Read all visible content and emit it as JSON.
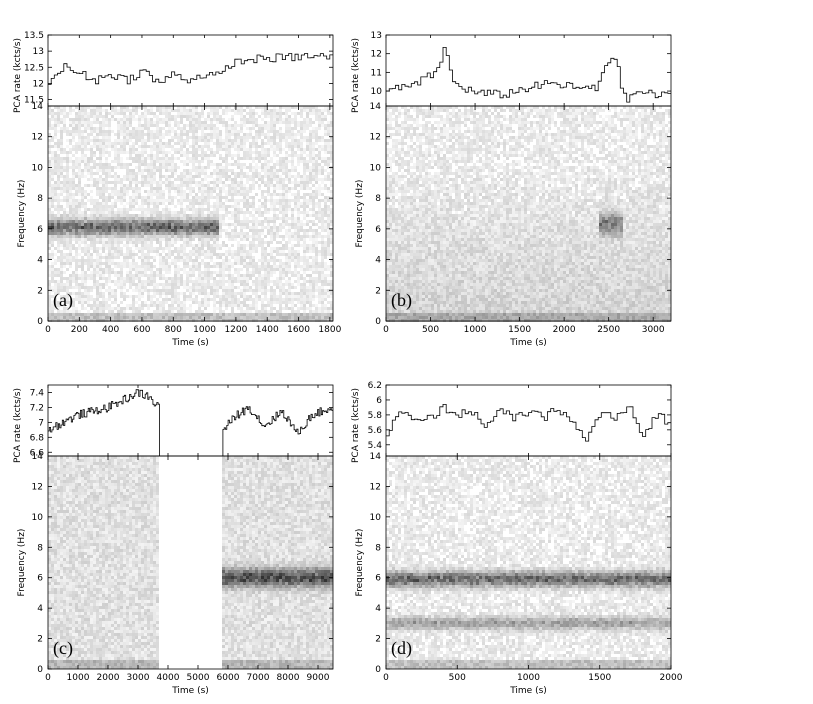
{
  "chart_data": [
    {
      "type": "heatmap",
      "panel_label": "(a)",
      "xlabel": "Time (s)",
      "xlim": [
        0,
        1820
      ],
      "xticks": [
        0,
        200,
        400,
        600,
        800,
        1000,
        1200,
        1400,
        1600,
        1800
      ],
      "rate_panel": {
        "ylabel": "PCA rate (kcts/s)",
        "ylim": [
          11.3,
          13.5
        ],
        "yticks": [
          11.5,
          12,
          12.5,
          13,
          13.5
        ],
        "gaps": [],
        "series": [
          {
            "t": 0,
            "v": 12.1
          },
          {
            "t": 100,
            "v": 12.5
          },
          {
            "t": 200,
            "v": 12.3
          },
          {
            "t": 300,
            "v": 12.1
          },
          {
            "t": 400,
            "v": 12.3
          },
          {
            "t": 500,
            "v": 12.1
          },
          {
            "t": 600,
            "v": 12.4
          },
          {
            "t": 700,
            "v": 12.0
          },
          {
            "t": 800,
            "v": 12.3
          },
          {
            "t": 900,
            "v": 12.1
          },
          {
            "t": 1000,
            "v": 12.3
          },
          {
            "t": 1100,
            "v": 12.2
          },
          {
            "t": 1150,
            "v": 12.6
          },
          {
            "t": 1300,
            "v": 12.75
          },
          {
            "t": 1500,
            "v": 12.8
          },
          {
            "t": 1700,
            "v": 12.85
          },
          {
            "t": 1820,
            "v": 12.8
          }
        ]
      },
      "spectrogram": {
        "ylabel": "Frequency (Hz)",
        "ylim": [
          0,
          14
        ],
        "yticks": [
          0,
          2,
          4,
          6,
          8,
          10,
          12,
          14
        ],
        "gaps": [],
        "qpo_bands": [
          {
            "t_start": 0,
            "t_end": 1100,
            "freq": 6.1,
            "width": 0.5,
            "strength": 0.8
          }
        ]
      }
    },
    {
      "type": "heatmap",
      "panel_label": "(b)",
      "xlabel": "Time (s)",
      "xlim": [
        0,
        3200
      ],
      "xticks": [
        0,
        500,
        1000,
        1500,
        2000,
        2500,
        3000
      ],
      "rate_panel": {
        "ylabel": "PCA rate (kcts/s)",
        "ylim": [
          9.2,
          13
        ],
        "yticks": [
          10,
          11,
          12,
          13
        ],
        "gaps": [],
        "series": [
          {
            "t": 0,
            "v": 10.0
          },
          {
            "t": 300,
            "v": 10.3
          },
          {
            "t": 550,
            "v": 11.0
          },
          {
            "t": 650,
            "v": 12.3
          },
          {
            "t": 750,
            "v": 10.4
          },
          {
            "t": 1000,
            "v": 9.9
          },
          {
            "t": 1300,
            "v": 9.8
          },
          {
            "t": 1600,
            "v": 10.2
          },
          {
            "t": 1850,
            "v": 10.4
          },
          {
            "t": 2100,
            "v": 10.2
          },
          {
            "t": 2350,
            "v": 10.1
          },
          {
            "t": 2450,
            "v": 11.4
          },
          {
            "t": 2550,
            "v": 12.0
          },
          {
            "t": 2680,
            "v": 9.4
          },
          {
            "t": 2800,
            "v": 10.0
          },
          {
            "t": 3000,
            "v": 9.8
          },
          {
            "t": 3200,
            "v": 9.7
          }
        ]
      },
      "spectrogram": {
        "ylabel": "Frequency (Hz)",
        "ylim": [
          0,
          14
        ],
        "yticks": [
          0,
          2,
          4,
          6,
          8,
          10,
          12,
          14
        ],
        "gaps": [],
        "qpo_bands": [
          {
            "t_start": 2400,
            "t_end": 2650,
            "freq": 6.3,
            "width": 0.7,
            "strength": 0.6
          }
        ]
      }
    },
    {
      "type": "heatmap",
      "panel_label": "(c)",
      "xlabel": "Time (s)",
      "xlim": [
        0,
        9500
      ],
      "xticks": [
        0,
        1000,
        2000,
        3000,
        4000,
        5000,
        6000,
        7000,
        8000,
        9000
      ],
      "rate_panel": {
        "ylabel": "PCA rate (kcts/s)",
        "ylim": [
          6.55,
          7.5
        ],
        "yticks": [
          6.6,
          6.8,
          7,
          7.2,
          7.4
        ],
        "gaps": [
          [
            3700,
            5800
          ]
        ],
        "series": [
          {
            "t": 0,
            "v": 6.9
          },
          {
            "t": 500,
            "v": 7.0
          },
          {
            "t": 1000,
            "v": 7.1
          },
          {
            "t": 1500,
            "v": 7.15
          },
          {
            "t": 2000,
            "v": 7.2
          },
          {
            "t": 2500,
            "v": 7.3
          },
          {
            "t": 3000,
            "v": 7.4
          },
          {
            "t": 3300,
            "v": 7.35
          },
          {
            "t": 3700,
            "v": 7.2
          },
          {
            "t": 5800,
            "v": 6.9
          },
          {
            "t": 6300,
            "v": 7.1
          },
          {
            "t": 6700,
            "v": 7.2
          },
          {
            "t": 7200,
            "v": 6.95
          },
          {
            "t": 7800,
            "v": 7.15
          },
          {
            "t": 8300,
            "v": 6.85
          },
          {
            "t": 8800,
            "v": 7.1
          },
          {
            "t": 9500,
            "v": 7.2
          }
        ]
      },
      "spectrogram": {
        "ylabel": "Frequency (Hz)",
        "ylim": [
          0,
          14
        ],
        "yticks": [
          0,
          2,
          4,
          6,
          8,
          10,
          12,
          14
        ],
        "gaps": [
          [
            3700,
            5800
          ]
        ],
        "qpo_bands": [
          {
            "t_start": 5800,
            "t_end": 9500,
            "freq": 6.0,
            "width": 0.6,
            "strength": 0.85
          }
        ]
      }
    },
    {
      "type": "heatmap",
      "panel_label": "(d)",
      "xlabel": "Time (s)",
      "xlim": [
        0,
        2000
      ],
      "xticks": [
        0,
        500,
        1000,
        1500,
        2000
      ],
      "rate_panel": {
        "ylabel": "PCA rate (kcts/s)",
        "ylim": [
          5.25,
          6.2
        ],
        "yticks": [
          5.4,
          5.6,
          5.8,
          6,
          6.2
        ],
        "gaps": [],
        "series": [
          {
            "t": 0,
            "v": 5.55
          },
          {
            "t": 100,
            "v": 5.85
          },
          {
            "t": 200,
            "v": 5.7
          },
          {
            "t": 300,
            "v": 5.75
          },
          {
            "t": 400,
            "v": 5.9
          },
          {
            "t": 500,
            "v": 5.8
          },
          {
            "t": 600,
            "v": 5.85
          },
          {
            "t": 700,
            "v": 5.65
          },
          {
            "t": 800,
            "v": 5.85
          },
          {
            "t": 900,
            "v": 5.75
          },
          {
            "t": 1000,
            "v": 5.85
          },
          {
            "t": 1100,
            "v": 5.75
          },
          {
            "t": 1200,
            "v": 5.9
          },
          {
            "t": 1300,
            "v": 5.7
          },
          {
            "t": 1400,
            "v": 5.45
          },
          {
            "t": 1500,
            "v": 5.85
          },
          {
            "t": 1600,
            "v": 5.75
          },
          {
            "t": 1700,
            "v": 5.9
          },
          {
            "t": 1800,
            "v": 5.5
          },
          {
            "t": 1900,
            "v": 5.85
          },
          {
            "t": 2000,
            "v": 5.6
          }
        ]
      },
      "spectrogram": {
        "ylabel": "Frequency (Hz)",
        "ylim": [
          0,
          14
        ],
        "yticks": [
          0,
          2,
          4,
          6,
          8,
          10,
          12,
          14
        ],
        "gaps": [],
        "qpo_bands": [
          {
            "t_start": 0,
            "t_end": 2000,
            "freq": 5.9,
            "width": 0.5,
            "strength": 0.75
          },
          {
            "t_start": 0,
            "t_end": 2000,
            "freq": 3.0,
            "width": 0.4,
            "strength": 0.45
          }
        ]
      }
    }
  ]
}
